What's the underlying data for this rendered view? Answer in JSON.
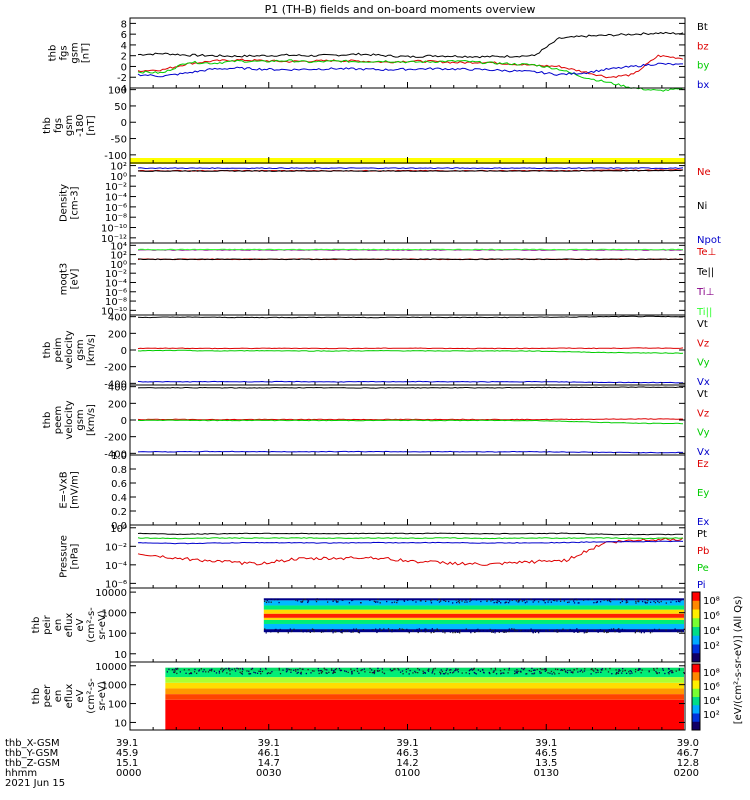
{
  "title": "P1 (TH-B) fields and on-board moments overview",
  "colors": {
    "black": "#000000",
    "red": "#dd0000",
    "green": "#00cc00",
    "blue": "#0000cc",
    "yellow": "#ffff00",
    "teal": "#006666",
    "darkred": "#880000",
    "lightgreen": "#33ff33",
    "purple": "#880088"
  },
  "chart_data": [
    {
      "type": "line",
      "ylabel": [
        "thb",
        "fgs",
        "gsm",
        "[nT]"
      ],
      "ylim": [
        -4,
        9
      ],
      "yticks": [
        "8",
        "6",
        "4",
        "2",
        "0",
        "-2",
        "-4"
      ],
      "ytick_values": [
        8,
        6,
        4,
        2,
        0,
        -2,
        -4
      ],
      "series": [
        {
          "name": "Bt",
          "color": "black",
          "values": [
            2.2,
            2.4,
            2.1,
            2.0,
            1.9,
            2.0,
            2.1,
            2.0,
            2.1,
            2.3,
            2.0,
            1.8,
            2.0,
            1.9,
            1.8,
            1.9,
            2.0,
            5.2,
            5.6,
            5.8,
            6.0,
            6.2,
            6.1
          ]
        },
        {
          "name": "bz",
          "color": "red",
          "values": [
            -0.8,
            -0.6,
            0.5,
            1.0,
            1.2,
            1.1,
            0.9,
            1.0,
            1.1,
            1.0,
            0.8,
            1.0,
            0.9,
            0.7,
            0.8,
            0.5,
            0.2,
            0.0,
            -1.0,
            -2.0,
            -1.5,
            2.0,
            1.5
          ]
        },
        {
          "name": "by",
          "color": "green",
          "values": [
            -1.0,
            -1.2,
            0.8,
            0.6,
            1.0,
            0.9,
            1.1,
            0.8,
            1.0,
            0.9,
            1.0,
            0.8,
            0.9,
            1.0,
            0.7,
            0.5,
            0.3,
            -0.5,
            -2.0,
            -3.0,
            -4.0,
            -4.5,
            -4.2
          ]
        },
        {
          "name": "bx",
          "color": "blue",
          "values": [
            -1.5,
            -1.8,
            -1.2,
            -0.5,
            -0.3,
            -0.5,
            -0.6,
            -0.5,
            -0.4,
            -0.5,
            -0.6,
            -0.5,
            -0.4,
            -0.5,
            -0.6,
            -0.8,
            -1.0,
            -1.5,
            -1.2,
            -0.5,
            0.0,
            0.5,
            0.3
          ]
        }
      ]
    },
    {
      "type": "line",
      "ylabel": [
        "thb",
        "fgs",
        "gsm",
        "-180",
        "[nT]"
      ],
      "ylim": [
        -125,
        105
      ],
      "yticks": [
        "100",
        "50",
        "0",
        "-50",
        "-100"
      ],
      "ytick_values": [
        100,
        50,
        0,
        -50,
        -100
      ],
      "series": []
    },
    {
      "type": "line",
      "ylabel": [
        "Density",
        "[cm-3]"
      ],
      "log": true,
      "yticks": [
        "10²",
        "10⁰",
        "10⁻²",
        "10⁻⁴",
        "10⁻⁶",
        "10⁻⁸",
        "10⁻¹⁰",
        "10⁻¹²"
      ],
      "ytick_values": [
        2,
        0,
        -2,
        -4,
        -6,
        -8,
        -10,
        -12
      ],
      "ylim": [
        -13,
        2.5
      ],
      "series": [
        {
          "name": "Ne",
          "color": "red",
          "values": [
            1.0,
            1.0,
            1.0,
            1.0,
            1.0,
            1.0,
            1.0,
            1.0,
            1.0,
            1.0,
            1.0,
            1.0,
            1.1,
            1.1,
            1.2
          ]
        },
        {
          "name": "Ni",
          "color": "black",
          "values": [
            0.95,
            0.95,
            0.95,
            0.95,
            0.95,
            0.95,
            0.95,
            0.95,
            0.95,
            0.95,
            0.95,
            0.95,
            1.0,
            1.0,
            1.1
          ]
        },
        {
          "name": "Npot",
          "color": "blue",
          "values": [
            1.5,
            1.5,
            1.5,
            1.5,
            1.5,
            1.5,
            1.5,
            1.5,
            1.5,
            1.5,
            1.5,
            1.5,
            1.5,
            1.5,
            1.5
          ]
        }
      ]
    },
    {
      "type": "line",
      "ylabel": [
        "moqt3",
        "[eV]"
      ],
      "log": true,
      "yticks": [
        "10⁴",
        "10²",
        "10⁰",
        "10⁻²",
        "10⁻⁴",
        "10⁻⁶",
        "10⁻⁸",
        "10⁻¹⁰"
      ],
      "ytick_values": [
        4,
        2,
        0,
        -2,
        -4,
        -6,
        -8,
        -10
      ],
      "ylim": [
        -11,
        4.5
      ],
      "series": [
        {
          "name": "Te⊥",
          "color": "red",
          "values": [
            1.0,
            1.0,
            1.0,
            1.0,
            1.0,
            1.0,
            1.0,
            1.0,
            1.0,
            1.0,
            1.0,
            1.0
          ]
        },
        {
          "name": "Te||",
          "color": "black",
          "values": [
            1.0,
            1.0,
            1.0,
            1.0,
            1.0,
            1.0,
            1.0,
            1.0,
            1.0,
            1.0,
            1.0,
            1.0
          ]
        },
        {
          "name": "Ti⊥",
          "color": "purple",
          "values": [
            3.0,
            3.0,
            3.0,
            3.0,
            3.0,
            3.0,
            3.0,
            3.0,
            3.0,
            3.0,
            3.0,
            3.0
          ]
        },
        {
          "name": "Ti||",
          "color": "lightgreen",
          "values": [
            3.1,
            3.1,
            3.1,
            3.1,
            3.1,
            3.1,
            3.1,
            3.1,
            3.1,
            3.1,
            3.1,
            3.1
          ]
        }
      ]
    },
    {
      "type": "line",
      "ylabel": [
        "thb",
        "peim",
        "velocity",
        "gsm",
        "[km/s]"
      ],
      "ylim": [
        -420,
        420
      ],
      "yticks": [
        "400",
        "200",
        "0",
        "-200",
        "-400"
      ],
      "ytick_values": [
        400,
        200,
        0,
        -200,
        -400
      ],
      "series": [
        {
          "name": "Vt",
          "color": "black",
          "values": [
            390,
            395,
            392,
            390,
            391,
            393,
            390,
            392,
            391,
            390,
            392,
            395,
            400,
            402,
            398
          ]
        },
        {
          "name": "Vz",
          "color": "red",
          "values": [
            20,
            22,
            18,
            20,
            21,
            19,
            20,
            22,
            20,
            18,
            20,
            22,
            20,
            24,
            22
          ]
        },
        {
          "name": "Vy",
          "color": "green",
          "values": [
            -10,
            -5,
            -12,
            -8,
            -10,
            -12,
            -9,
            -10,
            -11,
            -10,
            -12,
            -20,
            -30,
            -35,
            -38
          ]
        },
        {
          "name": "Vx",
          "color": "blue",
          "values": [
            -380,
            -382,
            -380,
            -381,
            -380,
            -382,
            -381,
            -380,
            -381,
            -382,
            -380,
            -384,
            -388,
            -390,
            -392
          ]
        }
      ]
    },
    {
      "type": "line",
      "ylabel": [
        "thb",
        "peem",
        "velocity",
        "gsm",
        "[km/s]"
      ],
      "ylim": [
        -420,
        420
      ],
      "yticks": [
        "400",
        "200",
        "0",
        "-200",
        "-400"
      ],
      "ytick_values": [
        400,
        200,
        0,
        -200,
        -400
      ],
      "series": [
        {
          "name": "Vt",
          "color": "black",
          "values": [
            385,
            388,
            386,
            385,
            387,
            386,
            385,
            386,
            387,
            386,
            388,
            390,
            392,
            394,
            392
          ]
        },
        {
          "name": "Vz",
          "color": "red",
          "values": [
            5,
            8,
            4,
            6,
            5,
            7,
            5,
            6,
            8,
            6,
            5,
            8,
            10,
            12,
            10
          ]
        },
        {
          "name": "Vy",
          "color": "green",
          "values": [
            -5,
            -2,
            -6,
            -4,
            -5,
            -6,
            -5,
            -4,
            -6,
            -5,
            -6,
            -15,
            -30,
            -40,
            -42
          ]
        },
        {
          "name": "Vx",
          "color": "blue",
          "values": [
            -380,
            -382,
            -378,
            -380,
            -381,
            -379,
            -380,
            -381,
            -380,
            -382,
            -380,
            -384,
            -388,
            -392,
            -390
          ]
        }
      ]
    },
    {
      "type": "line",
      "ylabel": [
        "E=-VxB",
        "[mV/m]"
      ],
      "ylim": [
        0,
        1.0
      ],
      "yticks": [
        "1.0",
        "0.8",
        "0.6",
        "0.4",
        "0.2",
        "0.0"
      ],
      "ytick_values": [
        1.0,
        0.8,
        0.6,
        0.4,
        0.2,
        0.0
      ],
      "series": [
        {
          "name": "Ez",
          "color": "red",
          "values": []
        },
        {
          "name": "Ey",
          "color": "green",
          "values": []
        },
        {
          "name": "Ex",
          "color": "blue",
          "values": []
        }
      ]
    },
    {
      "type": "line",
      "ylabel": [
        "Pressure",
        "[nPa]"
      ],
      "log": true,
      "yticks": [
        "10⁰",
        "10⁻²",
        "10⁻⁴",
        "10⁻⁶"
      ],
      "ytick_values": [
        0,
        -2,
        -4,
        -6
      ],
      "ylim": [
        -6.5,
        0.3
      ],
      "series": [
        {
          "name": "Pt",
          "color": "black",
          "values": [
            -0.6,
            -0.7,
            -0.65,
            -0.6,
            -0.62,
            -0.65,
            -0.6,
            -0.62,
            -0.6,
            -0.65,
            -0.62,
            -0.6,
            -0.7,
            -0.75,
            -0.7
          ]
        },
        {
          "name": "Pb",
          "color": "red",
          "values": [
            -2.8,
            -3.3,
            -3.6,
            -3.9,
            -3.4,
            -3.3,
            -3.2,
            -3.6,
            -3.8,
            -4.0,
            -3.7,
            -3.5,
            -1.6,
            -1.3,
            -1.2
          ]
        },
        {
          "name": "Pe",
          "color": "green",
          "values": [
            -1.1,
            -1.15,
            -1.1,
            -1.12,
            -1.1,
            -1.12,
            -1.1,
            -1.12,
            -1.1,
            -1.15,
            -1.1,
            -1.12,
            -1.1,
            -1.15,
            -1.1
          ]
        },
        {
          "name": "Pi",
          "color": "blue",
          "values": [
            -1.6,
            -1.7,
            -1.65,
            -1.6,
            -1.62,
            -1.65,
            -1.6,
            -1.62,
            -1.6,
            -1.65,
            -1.62,
            -1.6,
            -1.5,
            -1.5,
            -1.45
          ]
        }
      ]
    },
    {
      "type": "heatmap",
      "ylabel": [
        "thb",
        "peir",
        "en",
        "eflux",
        "eV",
        "(cm²-s-",
        "sr-eV)"
      ],
      "yticks": [
        "10000",
        "1000",
        "100",
        "10"
      ],
      "ytick_values": [
        4,
        3,
        2,
        1
      ],
      "ylim": [
        0.6,
        4.2
      ],
      "band_low": 2.05,
      "band_high": 3.7,
      "start_fraction": 0.23
    },
    {
      "type": "heatmap",
      "ylabel": [
        "thb",
        "peer",
        "en",
        "eflux",
        "eV",
        "(cm²-s-",
        "sr-eV)"
      ],
      "yticks": [
        "10000",
        "1000",
        "100",
        "10"
      ],
      "ytick_values": [
        4,
        3,
        2,
        1
      ],
      "ylim": [
        0.6,
        4.2
      ],
      "start_fraction": 0.05
    }
  ],
  "colorbar": {
    "label": "[eV/(cm²-s-sr-eV)] (All Qs)",
    "ticks": [
      "10⁸",
      "10⁶",
      "10⁴",
      "10²"
    ],
    "ticks_lower": [
      "10⁸",
      "10⁶",
      "10⁴",
      "10²"
    ]
  },
  "footer": {
    "row_labels": [
      "thb_X-GSM",
      "thb_Y-GSM",
      "thb_Z-GSM",
      "hhmm"
    ],
    "columns": [
      [
        "39.1",
        "45.9",
        "15.1",
        "0000"
      ],
      [
        "39.1",
        "46.1",
        "14.7",
        "0030"
      ],
      [
        "39.1",
        "46.3",
        "14.2",
        "0100"
      ],
      [
        "39.1",
        "46.5",
        "13.5",
        "0130"
      ],
      [
        "39.0",
        "46.7",
        "12.8",
        "0200"
      ]
    ],
    "date": "2021 Jun 15"
  }
}
